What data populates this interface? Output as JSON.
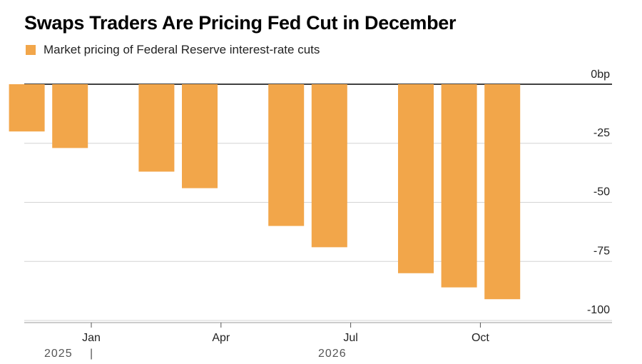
{
  "chart_data": {
    "type": "bar",
    "title": "Swaps Traders Are Pricing Fed Cut in December",
    "legend": "Market pricing of Federal Reserve interest-rate cuts",
    "unit": "bp",
    "color": "#f2a64a",
    "ylim": [
      -100,
      0
    ],
    "y_ticks": [
      {
        "value": 0,
        "label": "0bp"
      },
      {
        "value": -25,
        "label": "-25"
      },
      {
        "value": -50,
        "label": "-50"
      },
      {
        "value": -75,
        "label": "-75"
      },
      {
        "value": -100,
        "label": "-100"
      }
    ],
    "x_month_ticks": [
      {
        "month_index": 0,
        "label": "Jan"
      },
      {
        "month_index": 3,
        "label": "Apr"
      },
      {
        "month_index": 6,
        "label": "Jul"
      },
      {
        "month_index": 9,
        "label": "Oct"
      }
    ],
    "year_labels": [
      {
        "label": "2025",
        "anchor": "start-2025"
      },
      {
        "label": "2026",
        "anchor": "mid-2026"
      }
    ],
    "year_separator": "|",
    "series": [
      {
        "name": "Market pricing of Federal Reserve interest-rate cuts",
        "points": [
          {
            "date": "2025-12",
            "value": -20
          },
          {
            "date": "2026-01",
            "value": -27
          },
          {
            "date": "2026-03",
            "value": -37
          },
          {
            "date": "2026-04",
            "value": -44
          },
          {
            "date": "2026-06",
            "value": -60
          },
          {
            "date": "2026-07",
            "value": -69
          },
          {
            "date": "2026-09",
            "value": -80
          },
          {
            "date": "2026-10",
            "value": -86
          },
          {
            "date": "2026-11",
            "value": -91
          }
        ]
      }
    ]
  }
}
